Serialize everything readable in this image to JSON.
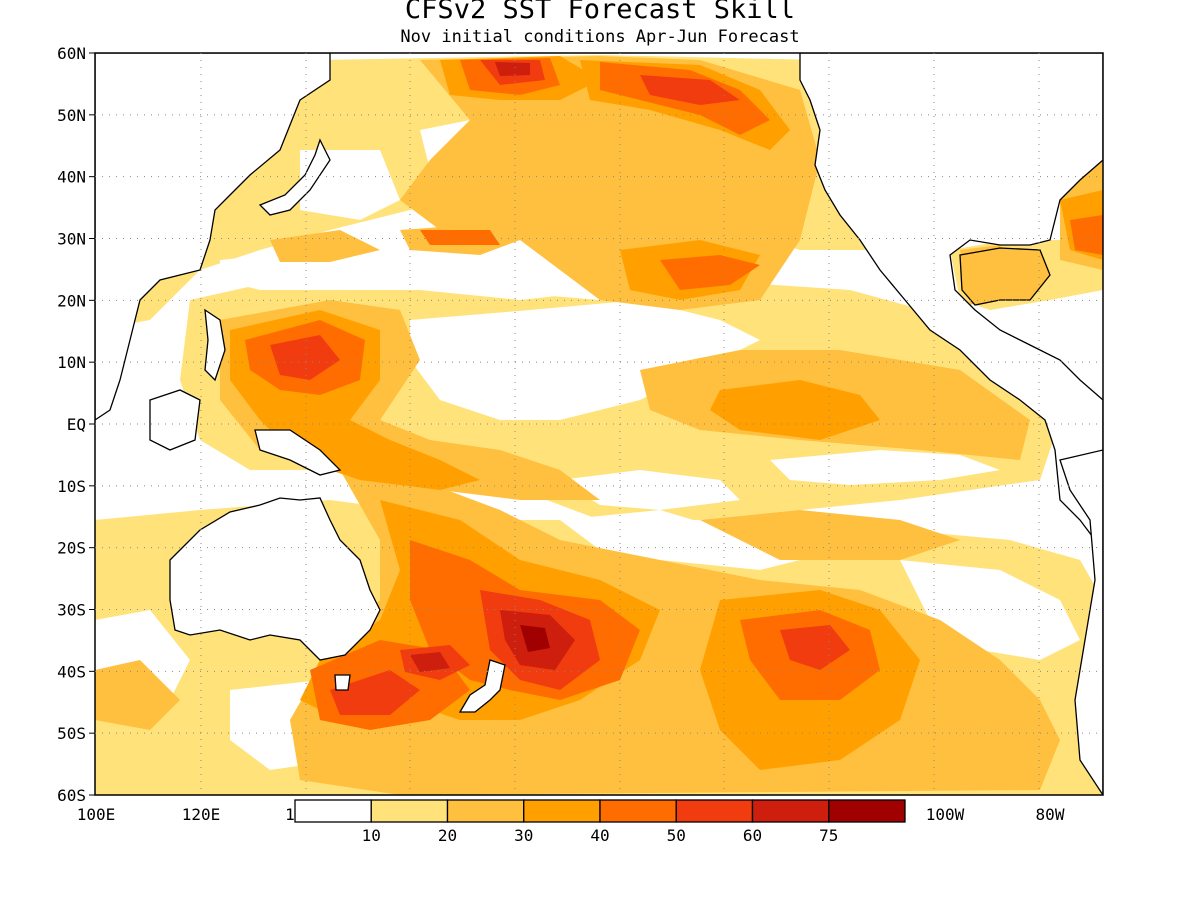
{
  "header": {
    "title": "CFSv2 SST Forecast Skill",
    "subtitle": "Nov initial conditions  Apr-Jun Forecast"
  },
  "map": {
    "lat_labels": [
      "60N",
      "50N",
      "40N",
      "30N",
      "20N",
      "10N",
      "EQ",
      "10S",
      "20S",
      "30S",
      "40S",
      "50S",
      "60S"
    ],
    "lon_labels": [
      "100E",
      "120E",
      "1",
      "100W",
      "80W"
    ],
    "colorbar": {
      "levels": [
        "10",
        "20",
        "30",
        "40",
        "50",
        "60",
        "75"
      ],
      "colors": [
        "#ffffff",
        "#ffe27a",
        "#ffbf3f",
        "#ffa000",
        "#ff6d00",
        "#f03c0f",
        "#cd1e0e",
        "#a00000"
      ]
    },
    "coastline_color": "#000000",
    "grid_style": "dotted"
  }
}
